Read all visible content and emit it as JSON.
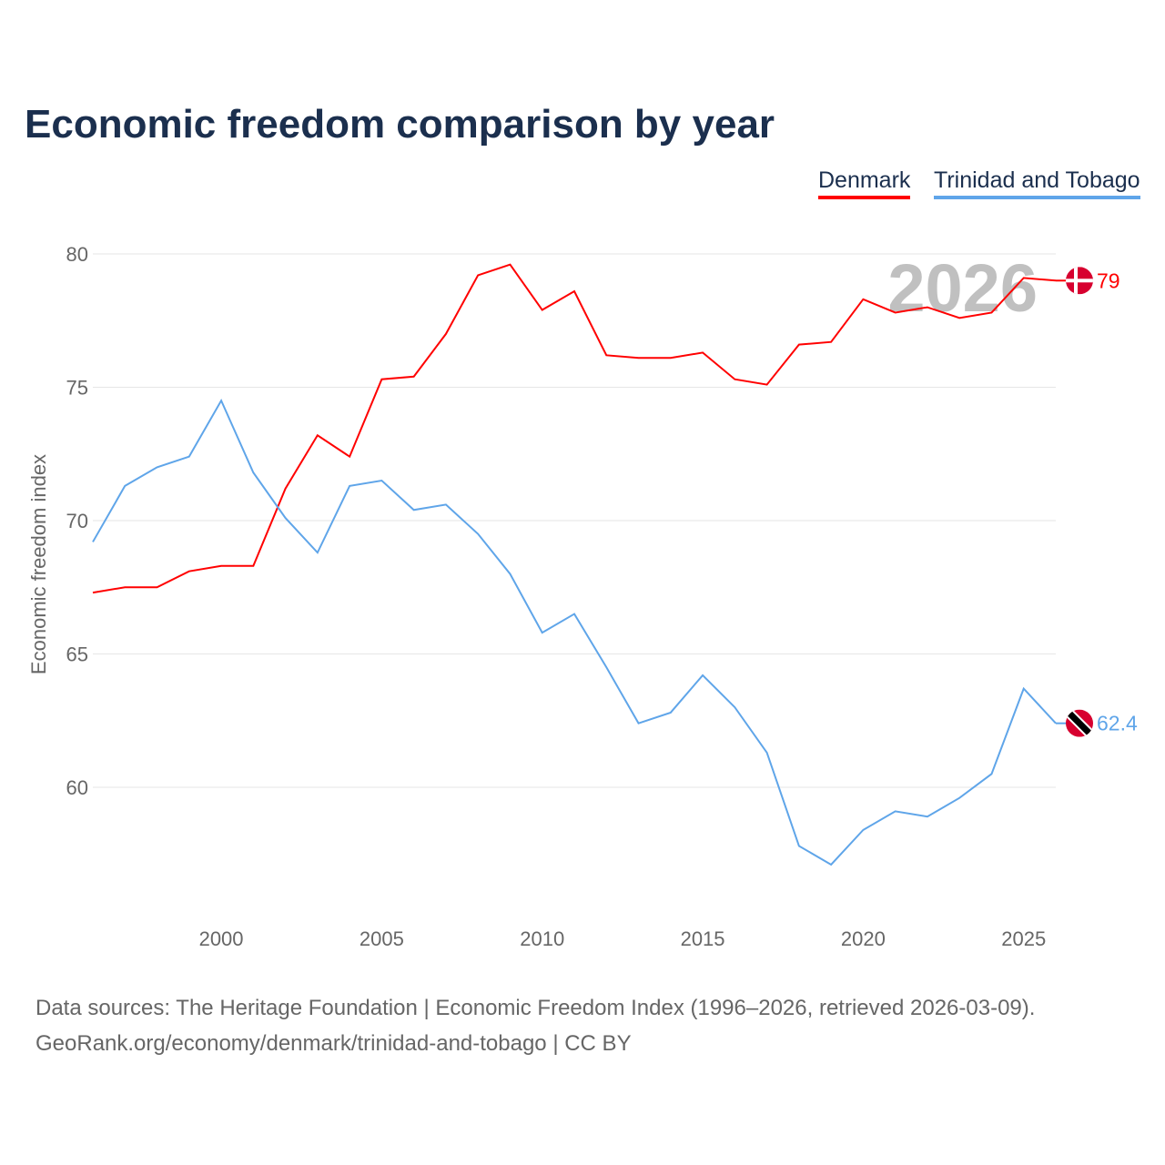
{
  "chart_data": {
    "type": "line",
    "title": "Economic freedom comparison by year",
    "xlabel": "",
    "ylabel": "Economic freedom index",
    "x": [
      1996,
      1997,
      1998,
      1999,
      2000,
      2001,
      2002,
      2003,
      2004,
      2005,
      2006,
      2007,
      2008,
      2009,
      2010,
      2011,
      2012,
      2013,
      2014,
      2015,
      2016,
      2017,
      2018,
      2019,
      2020,
      2021,
      2022,
      2023,
      2024,
      2025,
      2026
    ],
    "xlim": [
      1996,
      2026
    ],
    "ylim": [
      55,
      80
    ],
    "xticks": [
      2000,
      2005,
      2010,
      2015,
      2020,
      2025
    ],
    "yticks": [
      60,
      65,
      70,
      75,
      80
    ],
    "grid": true,
    "legend": "top-right",
    "current_year_label": "2026",
    "series": [
      {
        "name": "Denmark",
        "color": "#ff0000",
        "end_label": "79",
        "values": [
          67.3,
          67.5,
          67.5,
          68.1,
          68.3,
          68.3,
          71.2,
          73.2,
          72.4,
          75.3,
          75.4,
          77.0,
          79.2,
          79.6,
          77.9,
          78.6,
          76.2,
          76.1,
          76.1,
          76.3,
          75.3,
          75.1,
          76.6,
          76.7,
          78.3,
          77.8,
          78.0,
          77.6,
          77.8,
          79.1,
          79.0
        ]
      },
      {
        "name": "Trinidad and Tobago",
        "color": "#5fa5e9",
        "end_label": "62.4",
        "values": [
          69.2,
          71.3,
          72.0,
          72.4,
          74.5,
          71.8,
          70.1,
          68.8,
          71.3,
          71.5,
          70.4,
          70.6,
          69.5,
          68.0,
          65.8,
          66.5,
          64.5,
          62.4,
          62.8,
          64.2,
          63.0,
          61.3,
          57.8,
          57.1,
          58.4,
          59.1,
          58.9,
          59.6,
          60.5,
          63.7,
          62.4
        ]
      }
    ]
  },
  "source_line1": "Data sources: The Heritage Foundation | Economic Freedom Index (1996–2026, retrieved 2026-03-09).",
  "source_line2": "GeoRank.org/economy/denmark/trinidad-and-tobago | CC BY"
}
